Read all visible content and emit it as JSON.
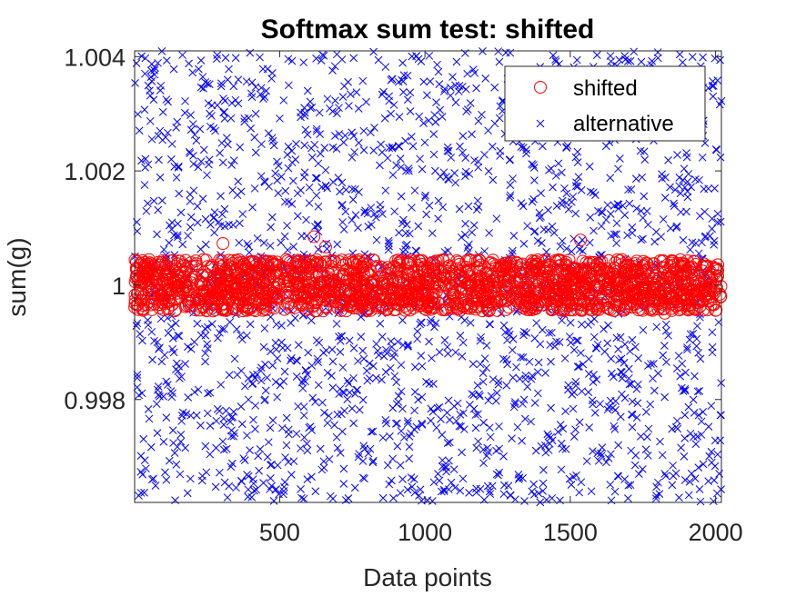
{
  "chart_data": {
    "type": "scatter",
    "title": "Softmax sum test: shifted",
    "xlabel": "Data points",
    "ylabel": "sum(g)",
    "xlim": [
      1,
      2020
    ],
    "ylim": [
      0.9962,
      1.0041
    ],
    "xticks": [
      500,
      1000,
      1500,
      2000
    ],
    "xtick_labels": [
      "500",
      "1000",
      "1500",
      "2000"
    ],
    "yticks": [
      0.998,
      1.0,
      1.002,
      1.004
    ],
    "ytick_labels": [
      "0.998",
      "1",
      "1.002",
      "1.004"
    ],
    "grid": false,
    "legend_position": "top-right",
    "n_points": 2020,
    "series": [
      {
        "name": "alternative",
        "marker": "x",
        "color": "#0000ff",
        "distribution": "uniform",
        "y_min": 0.9962,
        "y_max": 1.0041,
        "sample_points": [
          [
            30,
            0.9984
          ],
          [
            55,
            0.9976
          ],
          [
            120,
            1.0021
          ],
          [
            180,
            0.9987
          ],
          [
            240,
            0.9965
          ],
          [
            300,
            1.0031
          ],
          [
            360,
            0.9979
          ],
          [
            420,
            1.0011
          ],
          [
            480,
            0.9969
          ],
          [
            540,
            1.0027
          ],
          [
            600,
            0.9991
          ],
          [
            700,
            1.004
          ],
          [
            760,
            0.9973
          ],
          [
            830,
            1.0014
          ],
          [
            900,
            0.9982
          ],
          [
            960,
            1.0036
          ],
          [
            1040,
            0.9962
          ],
          [
            1100,
            1.0019
          ],
          [
            1180,
            0.9977
          ],
          [
            1250,
            1.0008
          ],
          [
            1320,
            0.9967
          ],
          [
            1400,
            1.0033
          ],
          [
            1460,
            0.9986
          ],
          [
            1540,
            1.0024
          ],
          [
            1620,
            0.9971
          ],
          [
            1700,
            1.0012
          ],
          [
            1780,
            0.9989
          ],
          [
            1840,
            0.9975
          ],
          [
            1900,
            1.0028
          ],
          [
            1960,
            0.9963
          ],
          [
            2010,
            1.0025
          ]
        ]
      },
      {
        "name": "shifted",
        "marker": "o",
        "color": "#ff0000",
        "distribution": "uniform",
        "y_min": 0.99955,
        "y_max": 1.00045,
        "sample_points": [
          [
            20,
            1.0003
          ],
          [
            150,
            0.9997
          ],
          [
            300,
            1.0002
          ],
          [
            450,
            0.9996
          ],
          [
            600,
            1.0004
          ],
          [
            750,
            0.9999
          ],
          [
            900,
            1.0001
          ],
          [
            1050,
            0.9998
          ],
          [
            1200,
            1.0003
          ],
          [
            1350,
            0.9996
          ],
          [
            1500,
            1.0002
          ],
          [
            1650,
            0.9999
          ],
          [
            1800,
            1.0004
          ],
          [
            1950,
            0.9997
          ],
          [
            2015,
            1.0003
          ]
        ],
        "outliers": [
          [
            305,
            1.00073
          ],
          [
            618,
            1.00085
          ],
          [
            658,
            1.00067
          ],
          [
            1535,
            1.00079
          ],
          [
            1825,
            0.99951
          ]
        ]
      }
    ]
  }
}
